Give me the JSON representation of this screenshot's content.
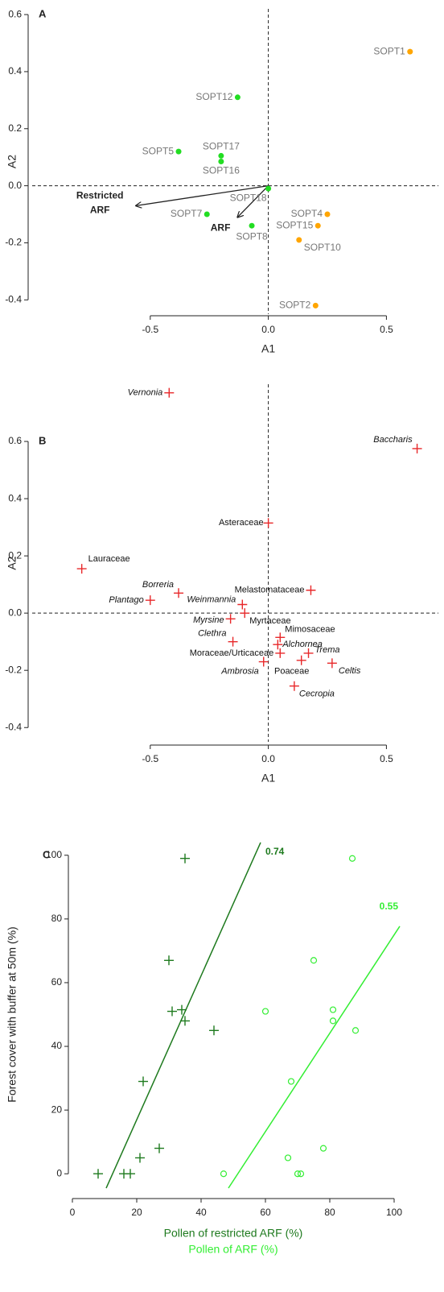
{
  "chart_data": [
    {
      "type": "scatter",
      "panel": "A",
      "xlabel": "A1",
      "ylabel": "A2",
      "xlim": [
        -1.0,
        0.72
      ],
      "ylim": [
        -0.45,
        0.62
      ],
      "xticks": [
        -0.5,
        {
          "value": 0,
          "label": "0.0"
        },
        0.5
      ],
      "yticks": [
        -0.4,
        -0.2,
        {
          "value": 0,
          "label": "0.0"
        },
        0.2,
        0.4,
        0.6
      ],
      "series": [
        {
          "color": "#ffa500",
          "labels": [
            "SOPT1",
            "SOPT4",
            "SOPT15",
            "SOPT10",
            "SOPT2"
          ],
          "x": [
            0.6,
            0.25,
            0.21,
            0.13,
            0.2
          ],
          "values": [
            0.47,
            -0.1,
            -0.14,
            -0.19,
            -0.42
          ]
        },
        {
          "color": "#22dd22",
          "labels": [
            "SOPT12",
            "SOPT5",
            "SOPT17",
            "SOPT16",
            "SOPT18",
            "SOPT7",
            "SOPT8"
          ],
          "x": [
            -0.13,
            -0.38,
            -0.2,
            -0.2,
            0.0,
            -0.26,
            -0.07
          ],
          "values": [
            0.31,
            0.12,
            0.105,
            0.085,
            -0.01,
            -0.1,
            -0.14
          ]
        }
      ],
      "arrows": [
        {
          "label": [
            "Restricted",
            "ARF"
          ],
          "x": -0.56,
          "y": -0.07
        },
        {
          "label": [
            "ARF"
          ],
          "x": -0.13,
          "y": -0.11
        }
      ]
    },
    {
      "type": "scatter",
      "panel": "B",
      "xlabel": "A1",
      "ylabel": "A2",
      "xlim": [
        -1.0,
        0.72
      ],
      "ylim": [
        -0.45,
        0.8
      ],
      "xticks": [
        -0.5,
        {
          "value": 0,
          "label": "0.0"
        },
        0.5
      ],
      "yticks": [
        -0.4,
        -0.2,
        {
          "value": 0,
          "label": "0.0"
        },
        0.2,
        0.4,
        0.6
      ],
      "series": [
        {
          "color": "#e8282a",
          "labels": [
            "Vernonia",
            "Baccharis",
            "Asteraceae",
            "Lauraceae",
            "Borreria",
            "Plantago",
            "Melastomataceae",
            "Weinmannia",
            "Myrtaceae",
            "Myrsine",
            "Mimosaceae",
            "Alchornea",
            "Clethra",
            "Moraceae/Urticaceae",
            "Trema",
            "Poaceae",
            "Celtis",
            "Ambrosia",
            "Cecropia"
          ],
          "x": [
            -0.42,
            0.63,
            0.0,
            -0.79,
            -0.38,
            -0.5,
            0.18,
            -0.11,
            -0.1,
            -0.16,
            0.05,
            0.04,
            -0.15,
            0.05,
            0.17,
            0.14,
            0.27,
            -0.02,
            0.11
          ],
          "values": [
            0.77,
            0.575,
            0.315,
            0.155,
            0.07,
            0.045,
            0.08,
            0.03,
            0.0,
            -0.02,
            -0.085,
            -0.11,
            -0.1,
            -0.14,
            -0.14,
            -0.165,
            -0.175,
            -0.17,
            -0.255
          ]
        }
      ]
    },
    {
      "type": "scatter",
      "panel": "C",
      "ylabel": "Forest cover with buffer at 50m (%)",
      "xlim": [
        0,
        100
      ],
      "ylim": [
        -5,
        105
      ],
      "xticks": [
        0,
        20,
        40,
        60,
        80,
        100
      ],
      "yticks": [
        0,
        20,
        40,
        60,
        80,
        100
      ],
      "series": [
        {
          "color": "#1e7a1e",
          "marker": "plus",
          "axis_label": "Pollen of restricted ARF (%)",
          "x": [
            8,
            16,
            18,
            21,
            27,
            22,
            31,
            34,
            35,
            30,
            44,
            35
          ],
          "values": [
            0,
            0,
            0,
            5,
            8,
            29,
            51,
            51.5,
            48,
            67,
            45,
            99
          ],
          "fit": {
            "label": "0.74",
            "x": [
              10.5,
              58.5
            ],
            "values": [
              -4.5,
              104
            ]
          }
        },
        {
          "color": "#33ee33",
          "marker": "circle",
          "axis_label": "Pollen of ARF (%)",
          "x": [
            47,
            70,
            71,
            67,
            78,
            68,
            60,
            81,
            81,
            75,
            88,
            87
          ],
          "values": [
            0,
            0,
            0,
            5,
            8,
            29,
            51,
            51.5,
            48,
            67,
            45,
            99
          ],
          "fit": {
            "label": "0.55",
            "x": [
              48.5,
              101.75
            ],
            "values": [
              -4.5,
              77.7
            ]
          }
        }
      ]
    }
  ]
}
